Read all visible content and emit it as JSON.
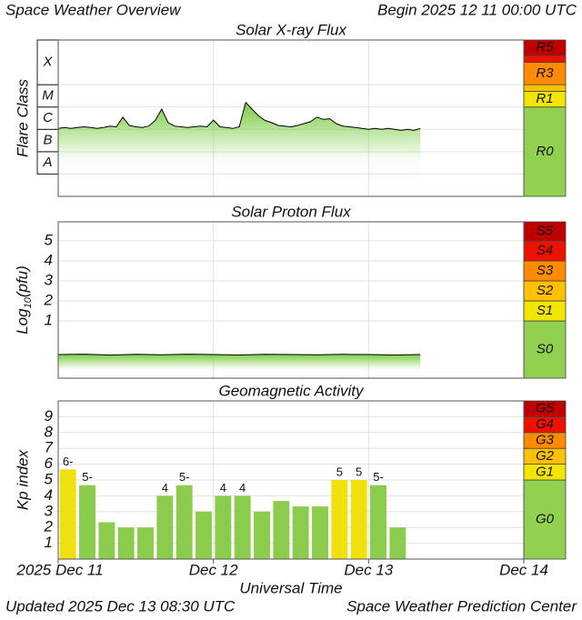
{
  "header": {
    "title": "Space Weather Overview",
    "begin": "Begin 2025 12 11 00:00 UTC"
  },
  "xlim": [
    0,
    72
  ],
  "xticks": [
    {
      "value": 0,
      "label": "2025 Dec 11"
    },
    {
      "value": 24,
      "label": "Dec 12"
    },
    {
      "value": 48,
      "label": "Dec 13"
    },
    {
      "value": 72,
      "label": "Dec 14"
    }
  ],
  "xlabel": "Universal Time",
  "footer": {
    "updated": "Updated 2025 Dec 13 08:30 UTC",
    "source": "Space Weather Prediction Center"
  },
  "chart_data": [
    {
      "type": "line",
      "title": "Solar X-ray Flux",
      "ylabel": "Flare Class",
      "log_scale": true,
      "ylim": [
        1e-09,
        0.01
      ],
      "class_bands": {
        "labels": [
          "A",
          "B",
          "C",
          "M",
          "X"
        ],
        "edges": [
          1e-08,
          1e-07,
          1e-06,
          1e-05,
          0.0001
        ]
      },
      "x": [
        0,
        1,
        2,
        3,
        4,
        5,
        6,
        7,
        8,
        9,
        10,
        11,
        12,
        13,
        14,
        15,
        16,
        17,
        18,
        19,
        20,
        21,
        22,
        23,
        24,
        25,
        26,
        27,
        28,
        29,
        30,
        31,
        32,
        33,
        34,
        35,
        36,
        37,
        38,
        39,
        40,
        41,
        42,
        43,
        44,
        45,
        46,
        47,
        48,
        49,
        50,
        51,
        52,
        53,
        54,
        55,
        56
      ],
      "series": [
        {
          "color": "#000000",
          "fill": "#7ccc44",
          "values": [
            1.1e-06,
            1.2e-06,
            1.1e-06,
            1.2e-06,
            1.3e-06,
            1.2e-06,
            1.1e-06,
            1.2e-06,
            1.4e-06,
            1.3e-06,
            3.5e-06,
            1.5e-06,
            1.3e-06,
            1.2e-06,
            1.4e-06,
            2.5e-06,
            8e-06,
            2e-06,
            1.4e-06,
            1.3e-06,
            1.2e-06,
            1.3e-06,
            1.4e-06,
            1.3e-06,
            2.6e-06,
            1.3e-06,
            1.2e-06,
            1.1e-06,
            1.3e-06,
            1.6e-05,
            8e-06,
            4e-06,
            2.5e-06,
            2e-06,
            1.5e-06,
            1.4e-06,
            1.3e-06,
            1.5e-06,
            1.8e-06,
            2.2e-06,
            3.5e-06,
            2.8e-06,
            3e-06,
            1.8e-06,
            1.4e-06,
            1.3e-06,
            1.2e-06,
            1.1e-06,
            1e-06,
            1.1e-06,
            1e-06,
            1.1e-06,
            1e-06,
            9e-07,
            1e-06,
            9e-07,
            1.1e-06
          ]
        }
      ],
      "scale": {
        "labels": [
          "R0",
          "R1",
          null,
          "R3",
          null,
          "R5"
        ],
        "thresholds": [
          1e-05,
          5e-05,
          0.0001,
          0.001,
          0.002
        ],
        "colors": [
          "#92d050",
          "#f2e600",
          "#ffc000",
          "#ff8c00",
          "#ee1100",
          "#c00000"
        ]
      }
    },
    {
      "type": "line",
      "title": "Solar Proton Flux",
      "ylabel": {
        "text": "Log",
        "sub": "10",
        "rest": "(pfu)"
      },
      "ylim": [
        -1.86,
        5.95
      ],
      "yticks": [
        1,
        2,
        3,
        4,
        5
      ],
      "x": [
        0,
        4,
        8,
        12,
        16,
        20,
        24,
        28,
        32,
        36,
        40,
        44,
        48,
        52,
        56
      ],
      "series": [
        {
          "color": "#000000",
          "fill": "#7ccc44",
          "values": [
            -0.68,
            -0.66,
            -0.7,
            -0.67,
            -0.69,
            -0.66,
            -0.68,
            -0.7,
            -0.67,
            -0.68,
            -0.69,
            -0.67,
            -0.68,
            -0.7,
            -0.68
          ]
        }
      ],
      "scale": {
        "labels": [
          "S0",
          "S1",
          "S2",
          "S3",
          "S4",
          "S5"
        ],
        "thresholds": [
          1,
          2,
          3,
          4,
          5
        ],
        "colors": [
          "#92d050",
          "#f2e600",
          "#ffc000",
          "#ff8c00",
          "#ee1100",
          "#c00000"
        ]
      }
    },
    {
      "type": "bar",
      "title": "Geomagnetic Activity",
      "ylabel": "Kp index",
      "ylim": [
        0,
        10
      ],
      "yticks": [
        1,
        2,
        3,
        4,
        5,
        6,
        7,
        8,
        9
      ],
      "x": [
        0,
        3,
        6,
        9,
        12,
        15,
        18,
        21,
        24,
        27,
        30,
        33,
        36,
        39,
        42,
        45,
        48,
        51
      ],
      "values": [
        5.67,
        4.67,
        2.33,
        2,
        2,
        4,
        4.67,
        3,
        4,
        4,
        3,
        3.67,
        3.33,
        3.33,
        5,
        5,
        4.67,
        2
      ],
      "value_labels": [
        "6-",
        "5-",
        null,
        null,
        null,
        "4",
        "5-",
        null,
        "4",
        "4",
        null,
        null,
        null,
        null,
        "5",
        "5",
        "5-",
        null
      ],
      "colors": [
        "#f0e010",
        "#8ccc4c",
        "#8ccc4c",
        "#8ccc4c",
        "#8ccc4c",
        "#8ccc4c",
        "#8ccc4c",
        "#8ccc4c",
        "#8ccc4c",
        "#8ccc4c",
        "#8ccc4c",
        "#8ccc4c",
        "#8ccc4c",
        "#8ccc4c",
        "#f0e010",
        "#f0e010",
        "#8ccc4c",
        "#8ccc4c"
      ],
      "scale": {
        "labels": [
          "G0",
          "G1",
          "G2",
          "G3",
          "G4",
          "G5"
        ],
        "thresholds": [
          5,
          6,
          7,
          8,
          9
        ],
        "colors": [
          "#92d050",
          "#f2e600",
          "#ffc000",
          "#ff8c00",
          "#ee1100",
          "#c00000"
        ]
      }
    }
  ]
}
